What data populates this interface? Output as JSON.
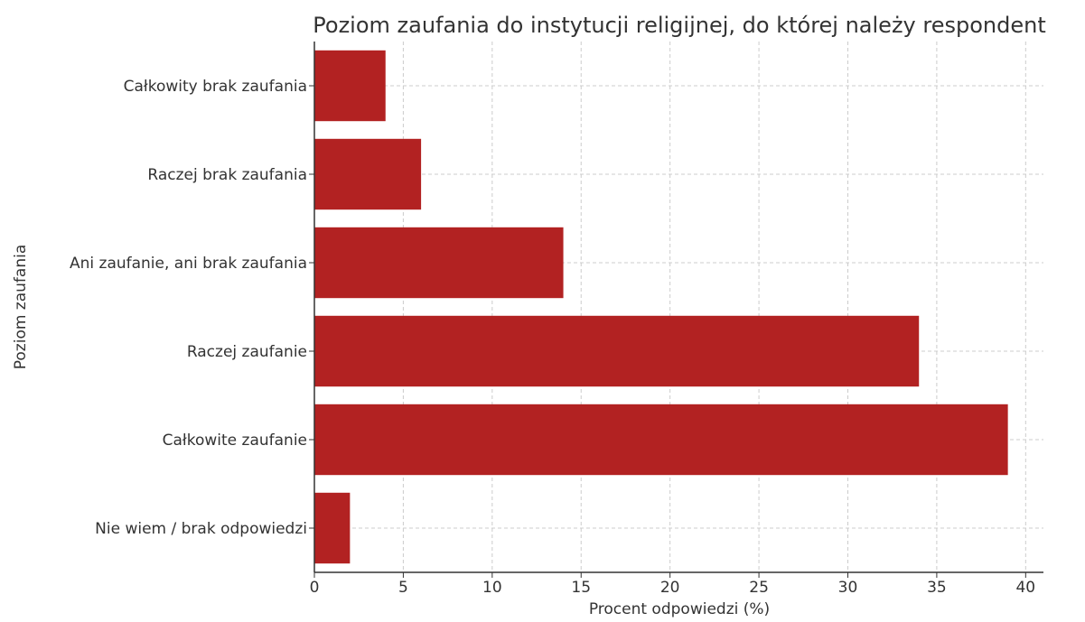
{
  "chart_data": {
    "type": "bar",
    "orientation": "horizontal",
    "title": "Poziom zaufania do instytucji religijnej, do której należy respondent",
    "xlabel": "Procent odpowiedzi (%)",
    "ylabel": "Poziom zaufania",
    "categories": [
      "Całkowity brak zaufania",
      "Raczej brak zaufania",
      "Ani zaufanie, ani brak zaufania",
      "Raczej zaufanie",
      "Całkowite zaufanie",
      "Nie wiem / brak odpowiedzi"
    ],
    "values": [
      4,
      6,
      14,
      34,
      39,
      2
    ],
    "xlim": [
      0,
      41
    ],
    "xticks": [
      "0",
      "5",
      "10",
      "15",
      "20",
      "25",
      "30",
      "35",
      "40"
    ],
    "grid": true,
    "legend": "none",
    "bar_color": "#b22222",
    "grid_color": "#cccccc"
  }
}
